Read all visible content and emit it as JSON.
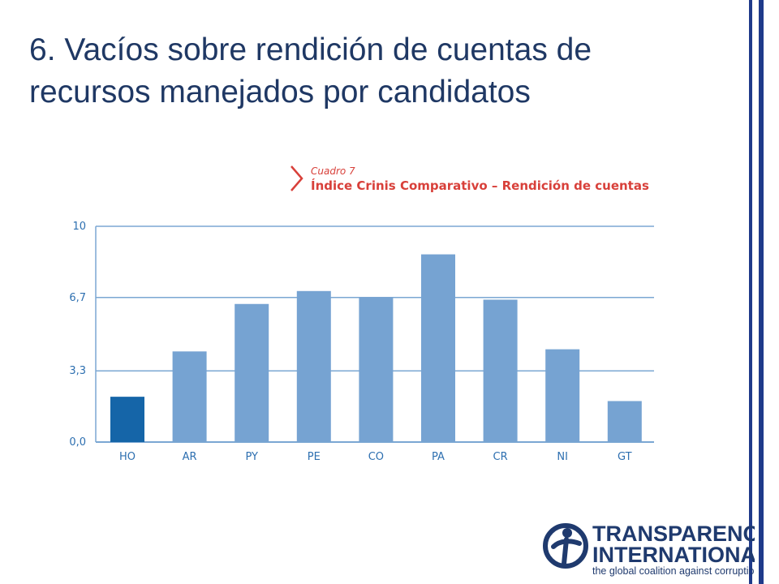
{
  "slide": {
    "title_line1": "6. Vacíos sobre rendición de cuentas de",
    "title_line2": "recursos manejados por candidatos",
    "accent_color": "#1f3a8a"
  },
  "chart_data": {
    "type": "bar",
    "kicker": "Cuadro 7",
    "title": "Índice Crinis Comparativo – Rendición de cuentas",
    "categories": [
      "HO",
      "AR",
      "PY",
      "PE",
      "CO",
      "PA",
      "CR",
      "NI",
      "GT"
    ],
    "values": [
      2.1,
      4.2,
      6.4,
      7.0,
      6.7,
      8.7,
      6.6,
      4.3,
      1.9
    ],
    "yticks": [
      "0,0",
      "3,3",
      "6,7",
      "10"
    ],
    "ytick_values": [
      0,
      3.3,
      6.7,
      10
    ],
    "ylim": [
      0,
      10
    ],
    "grid": true,
    "xlabel": "",
    "ylabel": "",
    "colors": {
      "highlight": "#1565a8",
      "bar": "#76a3d2",
      "grid": "#7ba7d3",
      "text": "#d8403a",
      "ticks": "#2d6fb0"
    },
    "highlight_index": 0
  },
  "logo": {
    "line1": "TRANSPARENCY",
    "line2": "INTERNATIONAL",
    "tagline": "the global coalition against corruption",
    "color": "#1f3a6e"
  }
}
